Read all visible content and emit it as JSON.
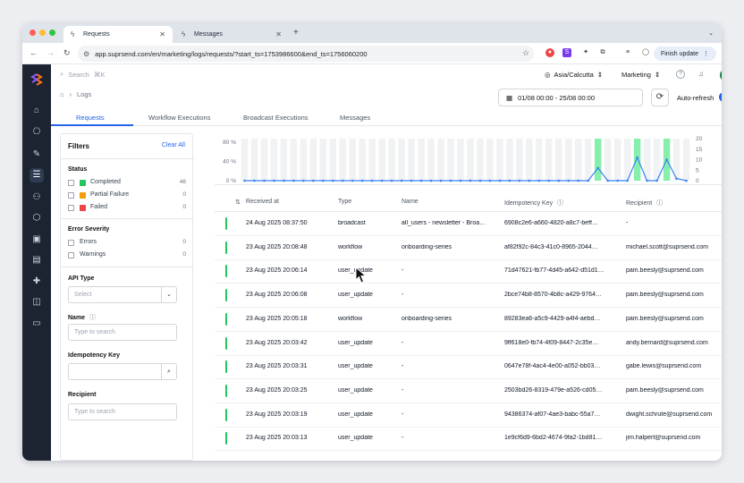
{
  "browser": {
    "tabs": [
      {
        "label": "Requests",
        "active": true
      },
      {
        "label": "Messages",
        "active": false
      }
    ],
    "url": "app.suprsend.com/en/marketing/logs/requests/?start_ts=1753986600&end_ts=1756060200",
    "finish_update": "Finish update"
  },
  "topbar": {
    "search_placeholder": "Search",
    "search_shortcut": "⌘K",
    "timezone": "Asia/Calcutta",
    "workspace": "Marketing",
    "avatar_initial": "N"
  },
  "breadcrumb": {
    "page": "Logs"
  },
  "controls": {
    "date_range": "01/08 00:00 - 25/08 00:00",
    "auto_refresh_label": "Auto-refresh"
  },
  "tabs": [
    "Requests",
    "Workflow Executions",
    "Broadcast Executions",
    "Messages"
  ],
  "filters": {
    "title": "Filters",
    "clear_all": "Clear All",
    "status_title": "Status",
    "status": [
      {
        "label": "Completed",
        "count": "46",
        "color": "#22c55e"
      },
      {
        "label": "Partial Failure",
        "count": "0",
        "color": "#f59e0b"
      },
      {
        "label": "Failed",
        "count": "0",
        "color": "#ef4444"
      }
    ],
    "severity_title": "Error Severity",
    "severity": [
      {
        "label": "Errors",
        "count": "0"
      },
      {
        "label": "Warnings",
        "count": "0"
      }
    ],
    "api_type_title": "API Type",
    "api_type_placeholder": "Select",
    "name_title": "Name",
    "name_placeholder": "Type to search",
    "idempotency_title": "Idempotency Key",
    "recipient_title": "Recipient",
    "recipient_placeholder": "Type to search"
  },
  "chart_data": {
    "type": "bar",
    "left_axis_ticks": [
      "80 %",
      "40 %",
      "0 %"
    ],
    "right_axis_ticks": [
      "20",
      "15",
      "10",
      "5",
      "0"
    ],
    "bars_count": 46,
    "green_bars": [
      36,
      40,
      43
    ],
    "line_values": [
      0,
      0,
      0,
      0,
      0,
      0,
      0,
      0,
      0,
      0,
      0,
      0,
      0,
      0,
      0,
      0,
      0,
      0,
      0,
      0,
      0,
      0,
      0,
      0,
      0,
      0,
      0,
      0,
      0,
      0,
      0,
      0,
      0,
      0,
      0,
      0,
      0,
      0,
      0,
      0,
      0,
      0,
      0,
      0,
      0,
      0
    ],
    "line_spikes": [
      {
        "index": 36,
        "value": 6
      },
      {
        "index": 40,
        "value": 11
      },
      {
        "index": 43,
        "value": 10
      },
      {
        "index": 44,
        "value": 1
      }
    ],
    "colors": {
      "completed": "#86efac",
      "line": "#3b82f6",
      "background_bar": "#f1f2f4"
    }
  },
  "table": {
    "columns": [
      "Received at",
      "Type",
      "Name",
      "Idempotency Key",
      "Recipient"
    ],
    "rows": [
      [
        "24 Aug 2025 08:37:50",
        "broadcast",
        "all_users - newsletter - Broa…",
        "6908c2e6-a660-4820-a8c7-beff…",
        "-"
      ],
      [
        "23 Aug 2025 20:08:48",
        "workflow",
        "onboarding-series",
        "af82f92c-84c3-41c0-8965-2044…",
        "michael.scott@suprsend.com"
      ],
      [
        "23 Aug 2025 20:06:14",
        "user_update",
        "-",
        "71d47621-fb77-4d45-a642-d51d1…",
        "pam.beesly@suprsend.com"
      ],
      [
        "23 Aug 2025 20:06:08",
        "user_update",
        "-",
        "2bce74b8-8570-4b8c-a429-9764…",
        "pam.beesly@suprsend.com"
      ],
      [
        "23 Aug 2025 20:05:18",
        "workflow",
        "onboarding-series",
        "89283ea6-a5c9-4429-a4f4-aebd…",
        "pam.beesly@suprsend.com"
      ],
      [
        "23 Aug 2025 20:03:42",
        "user_update",
        "-",
        "9ff618e0-fb74-4f09-8447-2c35e…",
        "andy.bernard@suprsend.com"
      ],
      [
        "23 Aug 2025 20:03:31",
        "user_update",
        "-",
        "0647e78f-4ac4-4e00-a052-bb03…",
        "gabe.lewis@suprsend.com"
      ],
      [
        "23 Aug 2025 20:03:25",
        "user_update",
        "-",
        "2503bd26-8319-479e-a526-cd05…",
        "pam.beesly@suprsend.com"
      ],
      [
        "23 Aug 2025 20:03:19",
        "user_update",
        "-",
        "94386374-af07-4ae3-babc-55a7…",
        "dwight.schrute@suprsend.com"
      ],
      [
        "23 Aug 2025 20:03:13",
        "user_update",
        "-",
        "1e9cf6d9-6bd2-4674-9fa2-1bd81…",
        "jim.halpert@suprsend.com"
      ]
    ]
  }
}
